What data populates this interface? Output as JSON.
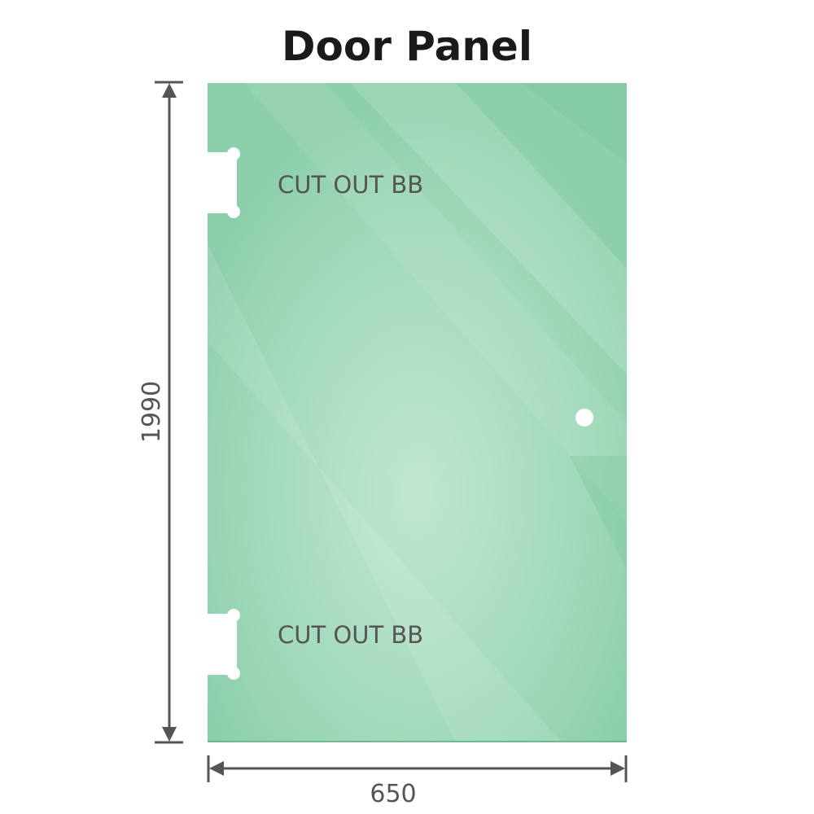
{
  "title": "Door Panel",
  "panel": {
    "color": "#8ccfab",
    "highlight_color": "#bfe5d0",
    "cutouts": [
      {
        "label": "CUT OUT BB"
      },
      {
        "label": "CUT OUT BB"
      }
    ]
  },
  "dimensions": {
    "height": "1990",
    "width": "650",
    "line_color": "#555555"
  }
}
